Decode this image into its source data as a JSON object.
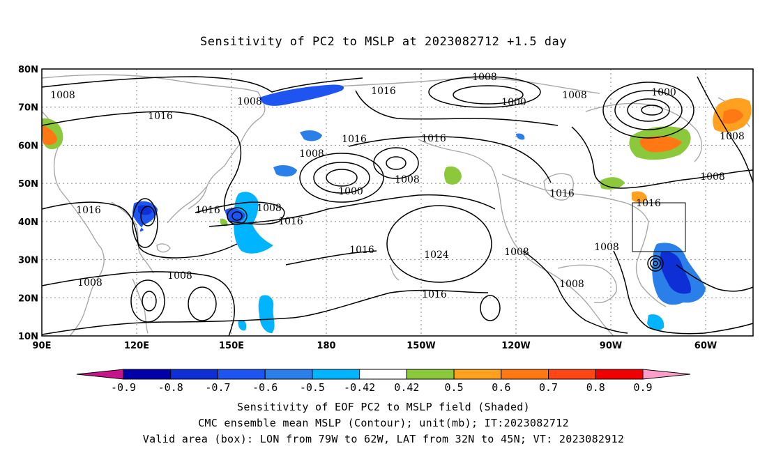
{
  "title": "Sensitivity of PC2 to MSLP at 2023082712 +1.5 day",
  "map": {
    "lon_range": [
      90,
      -45
    ],
    "lat_range": [
      10,
      80
    ],
    "lat_labels": [
      "80N",
      "70N",
      "60N",
      "50N",
      "40N",
      "30N",
      "20N",
      "10N"
    ],
    "lat_values": [
      80,
      70,
      60,
      50,
      40,
      30,
      20,
      10
    ],
    "lon_labels": [
      "90E",
      "120E",
      "150E",
      "180",
      "150W",
      "120W",
      "90W",
      "60W"
    ],
    "lon_values": [
      90,
      120,
      150,
      180,
      210,
      240,
      270,
      300
    ],
    "valid_box": {
      "lon_west": "79W",
      "lon_east": "62W",
      "lat_south": "32N",
      "lat_north": "45N"
    },
    "contour_labels": [
      "1008",
      "1016",
      "1008",
      "1016",
      "1008",
      "1000",
      "1008",
      "1000",
      "1016",
      "1016",
      "1008",
      "1008",
      "1000",
      "1008",
      "1016",
      "1016",
      "1016",
      "1016",
      "1024",
      "1008",
      "1008",
      "1008",
      "1008",
      "1016",
      "1016",
      "1008",
      "1016",
      "1008",
      "1008"
    ]
  },
  "colorbar": {
    "tick_labels": [
      "-0.9",
      "-0.8",
      "-0.7",
      "-0.6",
      "-0.5",
      "-0.42",
      "0.42",
      "0.5",
      "0.6",
      "0.7",
      "0.8",
      "0.9"
    ],
    "colors": [
      "#0000a8",
      "#0f2fd6",
      "#1e55f0",
      "#2b7fe8",
      "#00b4ff",
      "#ffffff",
      "#8cc83c",
      "#ffa01e",
      "#ff7814",
      "#ff4614",
      "#f00000"
    ],
    "under_color": "#c8148c",
    "over_color": "#ff9ec8"
  },
  "captions": [
    "Sensitivity of EOF PC2 to MSLP field (Shaded)",
    "CMC ensemble mean MSLP (Contour); unit(mb); IT:2023082712",
    "Valid area (box): LON from 79W to 62W, LAT from 32N to 45N; VT: 2023082912"
  ]
}
